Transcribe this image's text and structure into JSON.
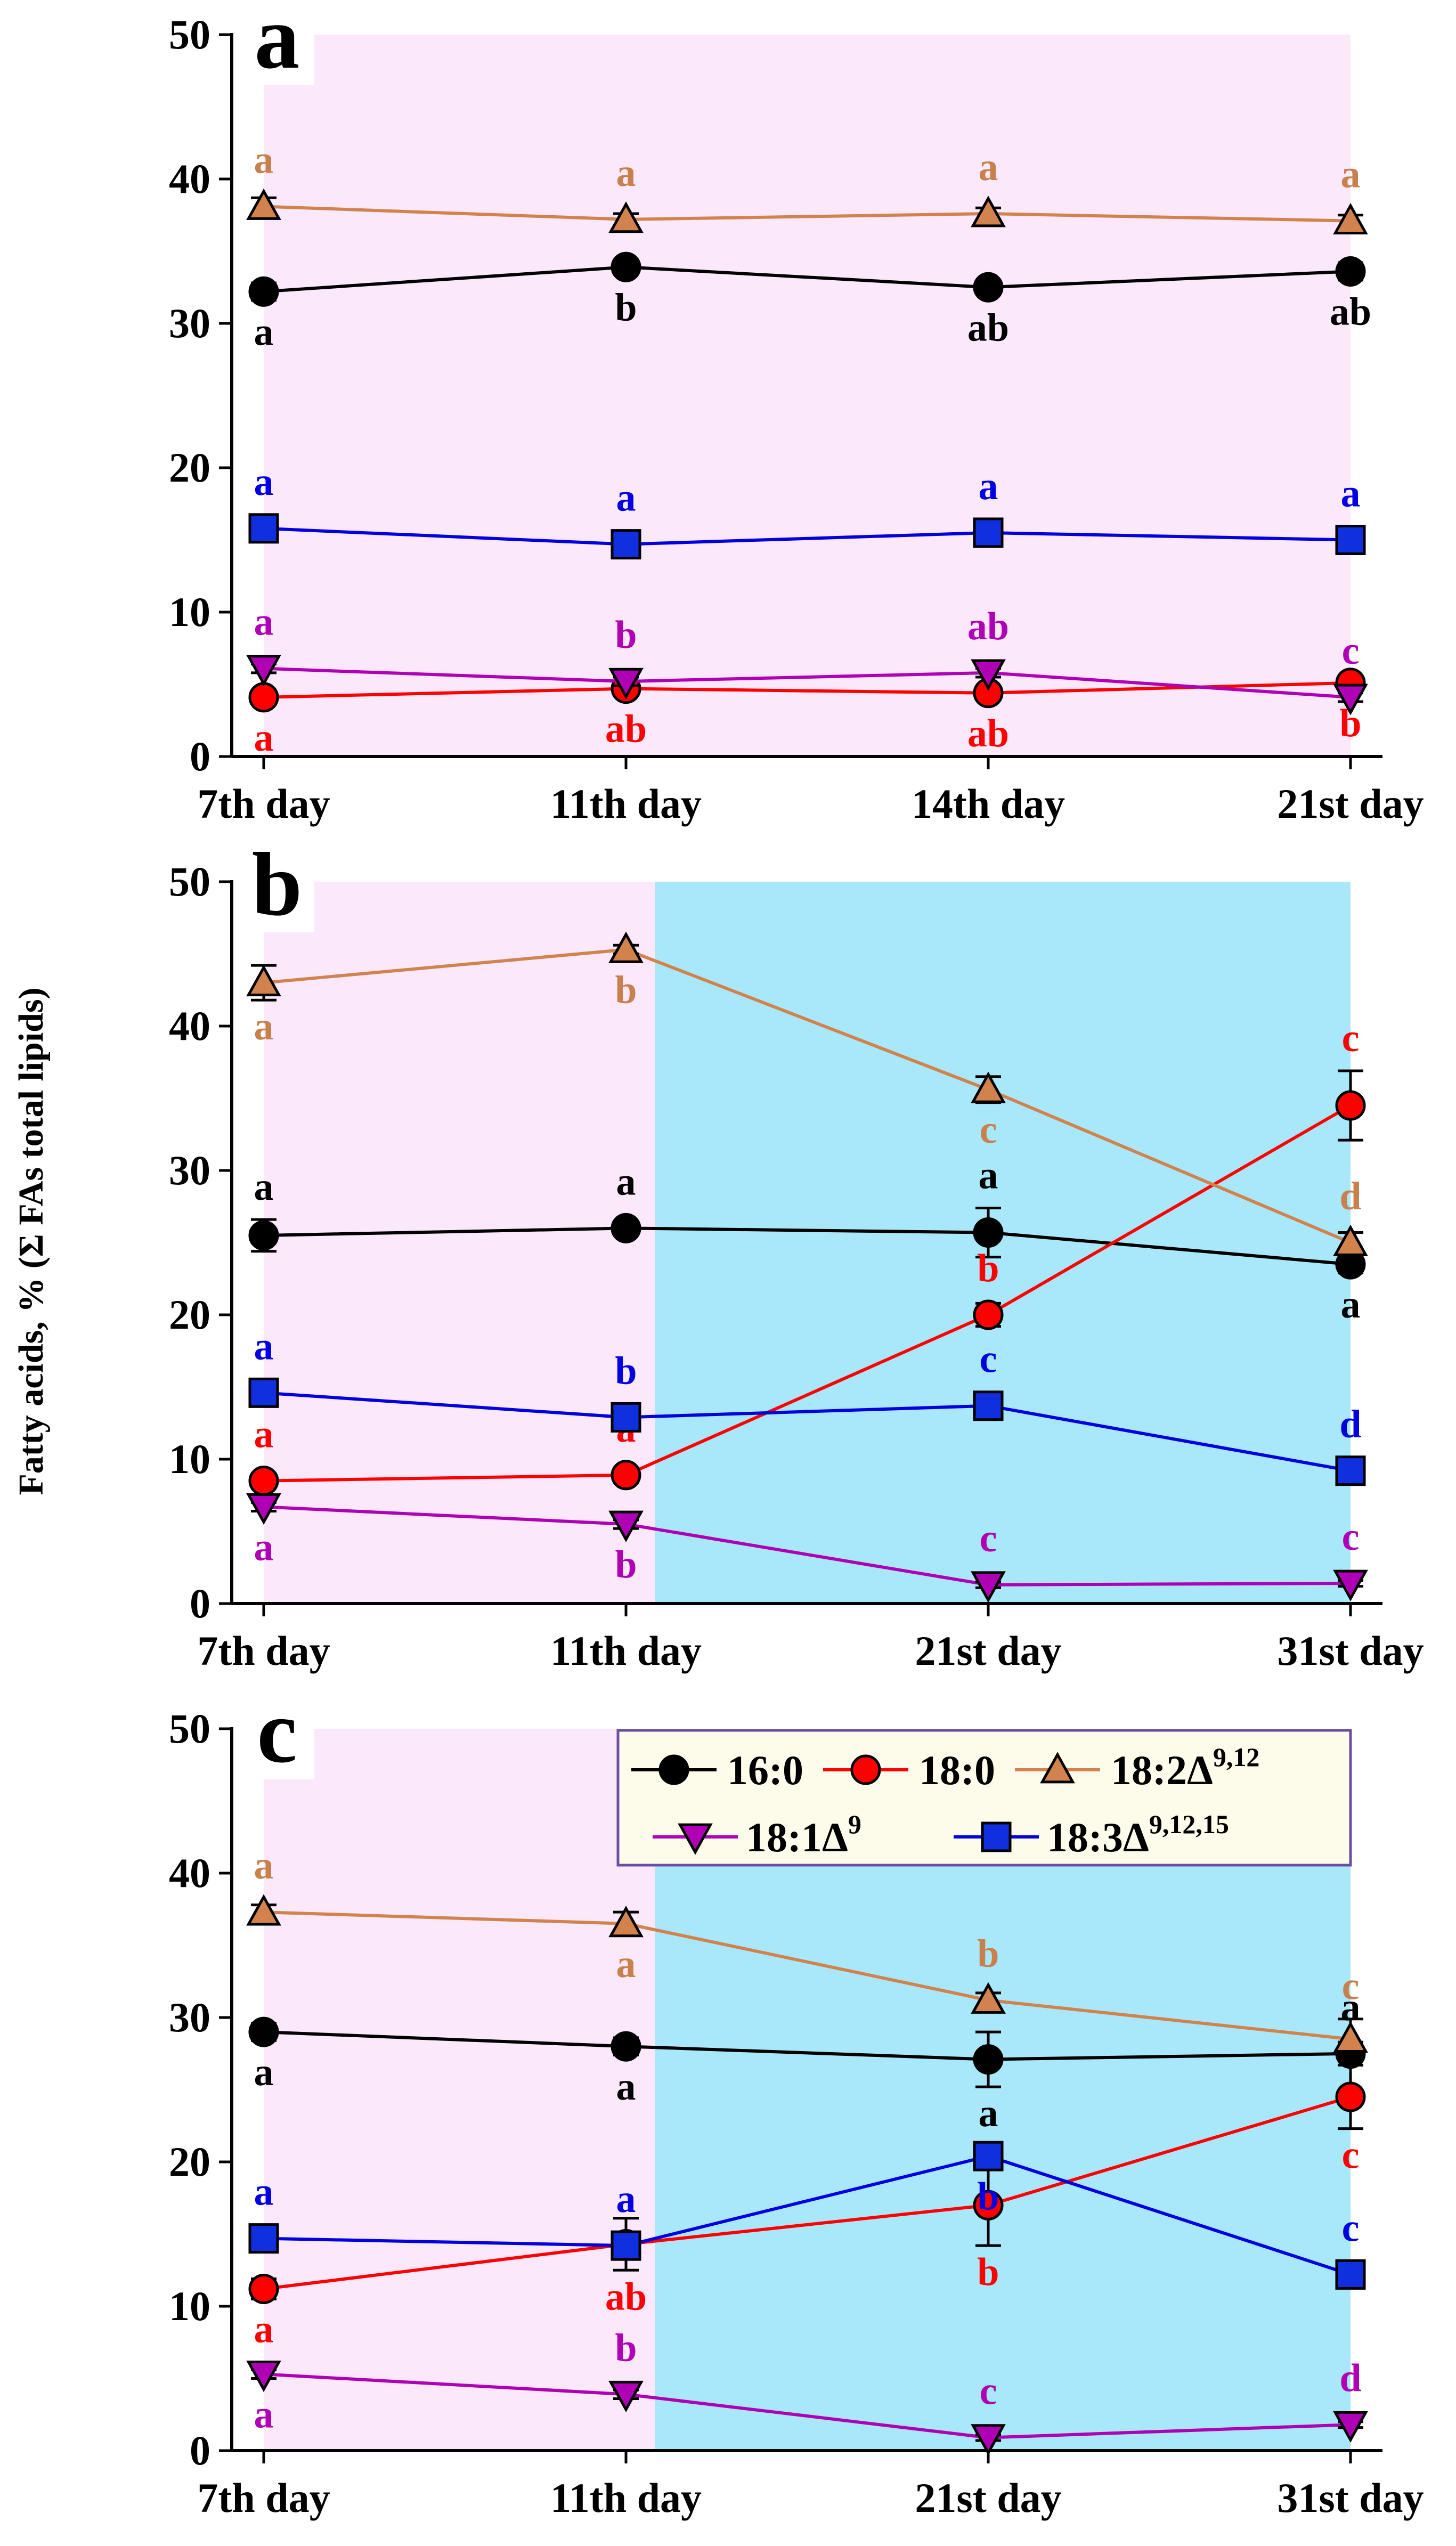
{
  "chart_data": [
    {
      "type": "line",
      "panel": "a",
      "categories": [
        "7th day",
        "11th day",
        "14th day",
        "21st day"
      ],
      "ylim": [
        0,
        50
      ],
      "yticks": [
        0,
        10,
        20,
        30,
        40,
        50
      ],
      "ylabel": "",
      "background": [
        {
          "from": 0,
          "to": 3,
          "color": "#fbe9fb"
        }
      ],
      "series": [
        {
          "key": "s16",
          "name": "16:0",
          "values": [
            32.2,
            33.9,
            32.5,
            33.6
          ],
          "errors": [
            0.6,
            0.5,
            0.4,
            0.6
          ],
          "labels": [
            "a",
            "b",
            "ab",
            "ab"
          ],
          "label_pos": [
            "below",
            "below",
            "below",
            "below"
          ]
        },
        {
          "key": "s18",
          "name": "18:0",
          "values": [
            4.1,
            4.7,
            4.4,
            5.1
          ],
          "errors": [
            0.3,
            0.3,
            0.3,
            0.4
          ],
          "labels": [
            "a",
            "ab",
            "ab",
            "b"
          ],
          "label_pos": [
            "below",
            "below",
            "below",
            "below"
          ]
        },
        {
          "key": "s182",
          "name": "18:2Δ9,12",
          "values": [
            38.1,
            37.2,
            37.6,
            37.1
          ],
          "errors": [
            0.6,
            0.4,
            0.4,
            0.4
          ],
          "labels": [
            "a",
            "a",
            "a",
            "a"
          ],
          "label_pos": [
            "above",
            "above",
            "above",
            "above"
          ]
        },
        {
          "key": "s181",
          "name": "18:1Δ9",
          "values": [
            6.1,
            5.2,
            5.8,
            4.1
          ],
          "errors": [
            0.3,
            0.3,
            0.3,
            0.3
          ],
          "labels": [
            "a",
            "b",
            "ab",
            "c"
          ],
          "label_pos": [
            "above",
            "above",
            "above",
            "above"
          ]
        },
        {
          "key": "s183",
          "name": "18:3Δ9,12,15",
          "values": [
            15.8,
            14.7,
            15.5,
            15.0
          ],
          "errors": [
            0.7,
            0.5,
            0.4,
            0.5
          ],
          "labels": [
            "a",
            "a",
            "a",
            "a"
          ],
          "label_pos": [
            "above",
            "above",
            "above",
            "above"
          ]
        }
      ]
    },
    {
      "type": "line",
      "panel": "b",
      "categories": [
        "7th day",
        "11th day",
        "21st day",
        "31st day"
      ],
      "ylim": [
        0,
        50
      ],
      "yticks": [
        0,
        10,
        20,
        30,
        40,
        50
      ],
      "ylabel": "Fatty acids, % (Σ FAs total lipids)",
      "background": [
        {
          "from": 0,
          "to": 1.08,
          "color": "#fbe9fb"
        },
        {
          "from": 1.08,
          "to": 3,
          "color": "#a8e8fa"
        }
      ],
      "series": [
        {
          "key": "s16",
          "name": "16:0",
          "values": [
            25.5,
            26.0,
            25.7,
            23.5
          ],
          "errors": [
            1.1,
            0.4,
            1.7,
            0.6
          ],
          "labels": [
            "a",
            "a",
            "a",
            "a"
          ],
          "label_pos": [
            "above",
            "above",
            "above",
            "below"
          ]
        },
        {
          "key": "s18",
          "name": "18:0",
          "values": [
            8.5,
            8.9,
            20.0,
            34.5
          ],
          "errors": [
            0.5,
            0.5,
            0.8,
            2.4
          ],
          "labels": [
            "a",
            "a",
            "b",
            "c"
          ],
          "label_pos": [
            "above",
            "above",
            "above",
            "above"
          ]
        },
        {
          "key": "s182",
          "name": "18:2Δ9,12",
          "values": [
            43.0,
            45.3,
            35.6,
            25.0
          ],
          "errors": [
            1.2,
            0.3,
            0.9,
            0.7
          ],
          "labels": [
            "a",
            "b",
            "c",
            "d"
          ],
          "label_pos": [
            "below",
            "below",
            "below",
            "above"
          ]
        },
        {
          "key": "s181",
          "name": "18:1Δ9",
          "values": [
            6.7,
            5.5,
            1.3,
            1.4
          ],
          "errors": [
            0.3,
            0.3,
            0.2,
            0.2
          ],
          "labels": [
            "a",
            "b",
            "c",
            "c"
          ],
          "label_pos": [
            "below",
            "below",
            "above",
            "above"
          ]
        },
        {
          "key": "s183",
          "name": "18:3Δ9,12,15",
          "values": [
            14.6,
            12.9,
            13.7,
            9.2
          ],
          "errors": [
            0.4,
            0.3,
            0.4,
            0.4
          ],
          "labels": [
            "a",
            "b",
            "c",
            "d"
          ],
          "label_pos": [
            "above",
            "above",
            "above",
            "above"
          ]
        }
      ]
    },
    {
      "type": "line",
      "panel": "c",
      "categories": [
        "7th day",
        "11th day",
        "21st day",
        "31st day"
      ],
      "ylim": [
        0,
        50
      ],
      "yticks": [
        0,
        10,
        20,
        30,
        40,
        50
      ],
      "ylabel": "",
      "background": [
        {
          "from": 0,
          "to": 1.08,
          "color": "#fbe9fb"
        },
        {
          "from": 1.08,
          "to": 3,
          "color": "#a8e8fa"
        }
      ],
      "series": [
        {
          "key": "s16",
          "name": "16:0",
          "values": [
            29.0,
            28.0,
            27.1,
            27.5
          ],
          "errors": [
            0.6,
            0.6,
            1.9,
            0.8
          ],
          "labels": [
            "a",
            "a",
            "a",
            "a"
          ],
          "label_pos": [
            "below",
            "below",
            "below",
            "above"
          ]
        },
        {
          "key": "s18",
          "name": "18:0",
          "values": [
            11.2,
            14.3,
            17.0,
            24.5
          ],
          "errors": [
            0.7,
            1.8,
            2.8,
            2.2
          ],
          "labels": [
            "a",
            "ab",
            "b",
            "c"
          ],
          "label_pos": [
            "below",
            "below",
            "below",
            "below"
          ]
        },
        {
          "key": "s182",
          "name": "18:2Δ9,12",
          "values": [
            37.3,
            36.5,
            31.2,
            28.5
          ],
          "errors": [
            0.5,
            0.8,
            0.5,
            1.4
          ],
          "labels": [
            "a",
            "a",
            "b",
            "c"
          ],
          "label_pos": [
            "above",
            "below",
            "above",
            "above"
          ]
        },
        {
          "key": "s181",
          "name": "18:1Δ9",
          "values": [
            5.3,
            3.9,
            0.9,
            1.8
          ],
          "errors": [
            0.3,
            0.3,
            0.2,
            0.2
          ],
          "labels": [
            "a",
            "b",
            "c",
            "d"
          ],
          "label_pos": [
            "below",
            "above",
            "above",
            "above"
          ]
        },
        {
          "key": "s183",
          "name": "18:3Δ9,12,15",
          "values": [
            14.7,
            14.2,
            20.4,
            12.2
          ],
          "errors": [
            0.5,
            0.6,
            0.6,
            0.6
          ],
          "labels": [
            "a",
            "a",
            "b",
            "c"
          ],
          "label_pos": [
            "above",
            "above",
            "below",
            "above"
          ]
        }
      ]
    }
  ],
  "styles": {
    "s16": {
      "line": "#000000",
      "fill": "#000000",
      "label": "#000000",
      "marker": "circle"
    },
    "s18": {
      "line": "#ff0000",
      "fill": "#ff0000",
      "label": "#ff0000",
      "marker": "circle"
    },
    "s182": {
      "line": "#d2834d",
      "fill": "#d2834d",
      "label": "#c8804c",
      "marker": "triangle-up"
    },
    "s181": {
      "line": "#b000b5",
      "fill": "#b000b5",
      "label": "#b000b5",
      "marker": "triangle-down"
    },
    "s183": {
      "line": "#0000e0",
      "fill": "#1030e0",
      "label": "#0000e0",
      "marker": "square"
    }
  },
  "legend": {
    "background": "#fdfcea",
    "border": "#6a4ea0",
    "entries": [
      {
        "key": "s16",
        "text": "16:0",
        "base": "16:0",
        "sup": ""
      },
      {
        "key": "s18",
        "text": "18:0",
        "base": "18:0",
        "sup": ""
      },
      {
        "key": "s182",
        "text": "18:2Δ9,12",
        "base": "18:2Δ",
        "sup": "9,12"
      },
      {
        "key": "s181",
        "text": "18:1Δ9",
        "base": "18:1Δ",
        "sup": "9"
      },
      {
        "key": "s183",
        "text": "18:3Δ9,12,15",
        "base": "18:3Δ",
        "sup": "9,12,15"
      }
    ]
  }
}
